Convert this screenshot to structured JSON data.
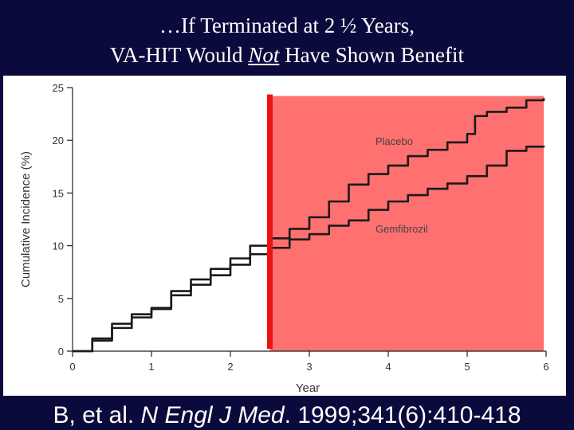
{
  "slide": {
    "title_line1": "…If Terminated at 2 ½ Years,",
    "title_line2_pre": "VA-HIT Would ",
    "title_line2_emph": "Not",
    "title_line2_post": " Have Shown Benefit",
    "citation_pre": "B, et al. ",
    "citation_journal": "N Engl J Med",
    "citation_post": ". 1999;341(6):410-418"
  },
  "colors": {
    "background": "#0a0a3c",
    "highlight_fill": "#ff7070",
    "marker_line": "#ee1111",
    "curve": "#1a1a1a"
  },
  "chart_data": {
    "type": "line",
    "xlabel": "Year",
    "ylabel": "Cumulative Incidence (%)",
    "xlim": [
      0,
      6
    ],
    "ylim": [
      0,
      25
    ],
    "x_ticks": [
      0,
      1,
      2,
      3,
      4,
      5,
      6
    ],
    "y_ticks": [
      0,
      5,
      10,
      15,
      20,
      25
    ],
    "grid": false,
    "highlight_region": {
      "x_start": 2.5,
      "x_end": 5.97,
      "y_start": 0,
      "y_end": 24.2
    },
    "marker_line_x": 2.5,
    "series": [
      {
        "name": "Placebo",
        "x": [
          0,
          0.25,
          0.5,
          0.75,
          1.0,
          1.25,
          1.5,
          1.75,
          2.0,
          2.25,
          2.5,
          2.75,
          3.0,
          3.25,
          3.5,
          3.75,
          4.0,
          4.25,
          4.5,
          4.75,
          5.0,
          5.1,
          5.25,
          5.5,
          5.75,
          5.97
        ],
        "y": [
          0,
          1.2,
          2.6,
          3.5,
          4.1,
          5.7,
          6.8,
          7.8,
          8.8,
          10.0,
          10.7,
          11.6,
          12.7,
          14.2,
          15.8,
          16.8,
          17.6,
          18.5,
          19.1,
          19.8,
          20.6,
          22.3,
          22.7,
          23.1,
          23.8,
          24.0
        ]
      },
      {
        "name": "Gemfibrozil",
        "x": [
          0,
          0.25,
          0.5,
          0.75,
          1.0,
          1.25,
          1.5,
          1.75,
          2.0,
          2.25,
          2.5,
          2.75,
          3.0,
          3.25,
          3.5,
          3.75,
          4.0,
          4.25,
          4.5,
          4.75,
          5.0,
          5.25,
          5.5,
          5.75,
          5.97
        ],
        "y": [
          0,
          1.0,
          2.2,
          3.2,
          4.0,
          5.3,
          6.3,
          7.2,
          8.2,
          9.2,
          9.8,
          10.6,
          11.1,
          11.9,
          12.4,
          13.4,
          14.2,
          14.8,
          15.4,
          15.9,
          16.6,
          17.6,
          19.0,
          19.4,
          19.5
        ]
      }
    ]
  }
}
